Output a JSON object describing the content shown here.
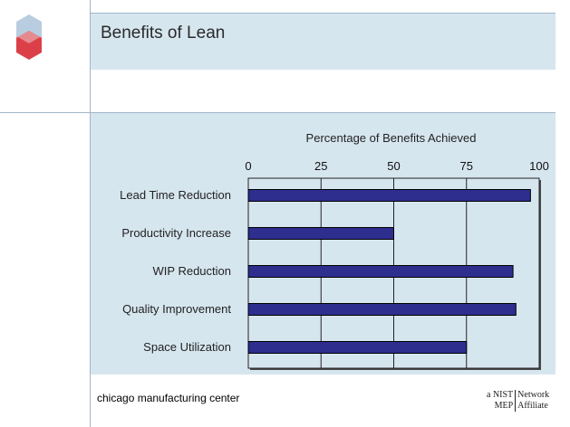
{
  "slide": {
    "title": "Benefits of Lean",
    "footer_text": "chicago manufacturing center",
    "badge": {
      "left_top": "a NIST",
      "left_bottom": "MEP",
      "right_top": "Network",
      "right_bottom": "Affiliate"
    }
  },
  "colors": {
    "band": "#d6e6ef",
    "bar_fill": "#2e2e8f",
    "logo_top": "#b9cde0",
    "logo_bottom": "#d9353e"
  },
  "chart_data": {
    "type": "bar",
    "orientation": "horizontal",
    "title": "Percentage of Benefits Achieved",
    "categories": [
      "Lead Time Reduction",
      "Productivity Increase",
      "WIP Reduction",
      "Quality Improvement",
      "Space Utilization"
    ],
    "values": [
      97,
      50,
      91,
      92,
      75
    ],
    "xlim": [
      0,
      100
    ],
    "xticks": [
      "0",
      "25",
      "50",
      "75",
      "100"
    ],
    "xaxis_position": "top",
    "grid": true,
    "legend": "none"
  }
}
